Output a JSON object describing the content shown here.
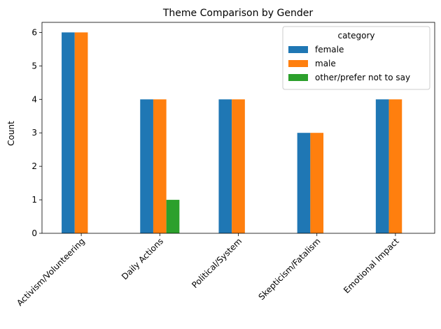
{
  "chart_data": {
    "type": "bar",
    "title": "Theme Comparison by Gender",
    "xlabel": "",
    "ylabel": "Count",
    "ylim": [
      0,
      6.3
    ],
    "yticks": [
      0,
      1,
      2,
      3,
      4,
      5,
      6
    ],
    "grid": false,
    "legend_position": "top-right",
    "legend_title": "category",
    "categories": [
      "Activism/Volunteering",
      "Daily Actions",
      "Political/System",
      "Skepticism/Fatalism",
      "Emotional Impact"
    ],
    "series": [
      {
        "name": "female",
        "color": "#1f77b4",
        "values": [
          6,
          4,
          4,
          3,
          4
        ]
      },
      {
        "name": "male",
        "color": "#ff7f0e",
        "values": [
          6,
          4,
          4,
          3,
          4
        ]
      },
      {
        "name": "other/prefer not to say",
        "color": "#2ca02c",
        "values": [
          0,
          1,
          0,
          0,
          0
        ]
      }
    ]
  }
}
